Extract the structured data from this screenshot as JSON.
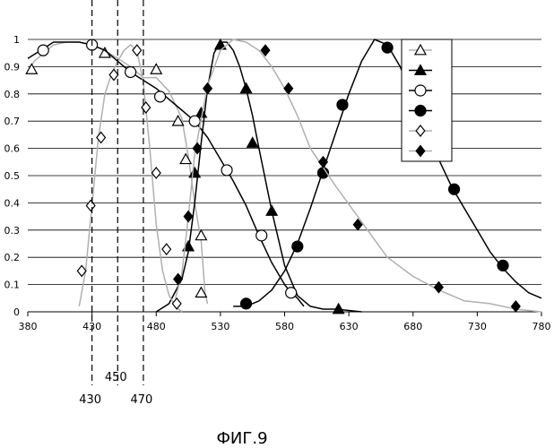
{
  "chart_data": {
    "type": "line",
    "title": "",
    "xlabel": "",
    "ylabel": "",
    "xlim": [
      380,
      780
    ],
    "ylim": [
      0,
      1
    ],
    "x_ticks": [
      380,
      430,
      480,
      530,
      580,
      630,
      680,
      730,
      780
    ],
    "y_ticks": [
      0,
      0.1,
      0.2,
      0.3,
      0.4,
      0.5,
      0.6,
      0.7,
      0.8,
      0.9,
      1
    ],
    "grid": "horizontal",
    "legend_position": "top-right",
    "reference_lines": [
      {
        "x": 430,
        "label": "430"
      },
      {
        "x": 450,
        "label": "450"
      },
      {
        "x": 470,
        "label": "470"
      }
    ],
    "caption": "ФИГ.9",
    "series": [
      {
        "marker": "open-triangle",
        "line_color": "#b0b0b0",
        "x": [
          380,
          385,
          400,
          410,
          420,
          430,
          440,
          450,
          460,
          470,
          480,
          490,
          500,
          505,
          510,
          515,
          518,
          520
        ],
        "y": [
          0.88,
          0.92,
          0.98,
          0.99,
          0.99,
          0.98,
          0.96,
          0.93,
          0.9,
          0.86,
          0.86,
          0.81,
          0.71,
          0.57,
          0.4,
          0.26,
          0.07,
          0.03
        ],
        "marker_x": [
          383,
          440,
          480,
          497,
          503,
          515,
          515
        ],
        "marker_y": [
          0.89,
          0.95,
          0.89,
          0.7,
          0.56,
          0.28,
          0.07
        ]
      },
      {
        "marker": "filled-triangle",
        "line_color": "#000000",
        "x": [
          480,
          490,
          500,
          505,
          510,
          515,
          520,
          525,
          530,
          535,
          540,
          545,
          550,
          555,
          560,
          570,
          580,
          590,
          600,
          610,
          620,
          640
        ],
        "y": [
          0.0,
          0.03,
          0.12,
          0.22,
          0.4,
          0.62,
          0.82,
          0.95,
          0.99,
          0.99,
          0.96,
          0.9,
          0.82,
          0.72,
          0.6,
          0.37,
          0.17,
          0.06,
          0.02,
          0.01,
          0.01,
          0.0
        ],
        "marker_x": [
          505,
          510,
          515,
          530,
          550,
          555,
          570,
          622
        ],
        "marker_y": [
          0.24,
          0.51,
          0.73,
          0.98,
          0.82,
          0.62,
          0.37,
          0.01
        ]
      },
      {
        "marker": "open-circle",
        "line_color": "#000000",
        "x": [
          380,
          390,
          400,
          410,
          420,
          430,
          440,
          450,
          460,
          470,
          480,
          490,
          500,
          510,
          520,
          530,
          540,
          550,
          560,
          570,
          580,
          585,
          590,
          595
        ],
        "y": [
          0.93,
          0.96,
          0.99,
          0.99,
          0.99,
          0.98,
          0.96,
          0.92,
          0.88,
          0.85,
          0.82,
          0.78,
          0.74,
          0.7,
          0.64,
          0.56,
          0.48,
          0.39,
          0.28,
          0.18,
          0.1,
          0.07,
          0.05,
          0.02
        ],
        "marker_x": [
          392,
          430,
          460,
          483,
          510,
          535,
          562,
          585
        ],
        "marker_y": [
          0.96,
          0.98,
          0.88,
          0.79,
          0.7,
          0.52,
          0.28,
          0.07
        ]
      },
      {
        "marker": "filled-circle",
        "line_color": "#000000",
        "x": [
          540,
          550,
          560,
          570,
          580,
          590,
          600,
          610,
          620,
          630,
          640,
          650,
          660,
          670,
          680,
          690,
          700,
          710,
          720,
          730,
          740,
          750,
          760,
          770,
          780
        ],
        "y": [
          0.02,
          0.02,
          0.04,
          0.08,
          0.15,
          0.25,
          0.38,
          0.52,
          0.66,
          0.8,
          0.92,
          1.0,
          0.98,
          0.9,
          0.78,
          0.67,
          0.56,
          0.46,
          0.38,
          0.3,
          0.22,
          0.16,
          0.11,
          0.07,
          0.05
        ],
        "marker_x": [
          550,
          590,
          610,
          625,
          660,
          712,
          750
        ],
        "marker_y": [
          0.03,
          0.24,
          0.51,
          0.76,
          0.97,
          0.45,
          0.17
        ]
      },
      {
        "marker": "open-diamond",
        "line_color": "#b0b0b0",
        "x": [
          420,
          425,
          430,
          435,
          440,
          445,
          450,
          455,
          460,
          465,
          470,
          475,
          480,
          485,
          490,
          495,
          500
        ],
        "y": [
          0.02,
          0.15,
          0.39,
          0.64,
          0.8,
          0.87,
          0.92,
          0.96,
          0.98,
          0.96,
          0.84,
          0.6,
          0.32,
          0.15,
          0.06,
          0.02,
          0.0
        ],
        "marker_x": [
          422,
          429,
          437,
          447,
          465,
          472,
          480,
          488,
          496
        ],
        "marker_y": [
          0.15,
          0.39,
          0.64,
          0.87,
          0.96,
          0.75,
          0.51,
          0.23,
          0.03
        ]
      },
      {
        "marker": "filled-diamond",
        "line_color": "#b0b0b0",
        "x": [
          495,
          500,
          505,
          510,
          520,
          530,
          540,
          550,
          560,
          570,
          580,
          590,
          600,
          620,
          640,
          660,
          680,
          700,
          720,
          740,
          760,
          780
        ],
        "y": [
          0.05,
          0.14,
          0.35,
          0.58,
          0.83,
          0.96,
          1.0,
          0.99,
          0.96,
          0.9,
          0.82,
          0.72,
          0.6,
          0.46,
          0.33,
          0.2,
          0.13,
          0.08,
          0.04,
          0.03,
          0.01,
          0.0
        ],
        "marker_x": [
          497,
          505,
          512,
          520,
          565,
          583,
          610,
          637,
          700,
          760
        ],
        "marker_y": [
          0.12,
          0.35,
          0.6,
          0.82,
          0.96,
          0.82,
          0.55,
          0.32,
          0.09,
          0.02
        ]
      }
    ]
  }
}
